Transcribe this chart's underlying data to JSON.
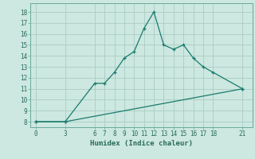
{
  "xlabel": "Humidex (Indice chaleur)",
  "bg_color": "#cce8e0",
  "line_color": "#1a7a6e",
  "grid_color": "#aaccc4",
  "line1_x": [
    0,
    3,
    6,
    7,
    8,
    9,
    10,
    11,
    12,
    13,
    14,
    15,
    16,
    17,
    18,
    21
  ],
  "line1_y": [
    8,
    8,
    11.5,
    11.5,
    12.5,
    13.8,
    14.4,
    16.5,
    18,
    15,
    14.6,
    15,
    13.8,
    13.0,
    12.5,
    11.0
  ],
  "line2_x": [
    0,
    3,
    21
  ],
  "line2_y": [
    8,
    8,
    11.0
  ],
  "xticks": [
    0,
    3,
    6,
    7,
    8,
    9,
    10,
    11,
    12,
    13,
    14,
    15,
    16,
    17,
    18,
    21
  ],
  "yticks": [
    8,
    9,
    10,
    11,
    12,
    13,
    14,
    15,
    16,
    17,
    18
  ],
  "xlim": [
    -0.5,
    22
  ],
  "ylim": [
    7.5,
    18.8
  ],
  "tick_fontsize": 5.5,
  "label_fontsize": 6.5
}
